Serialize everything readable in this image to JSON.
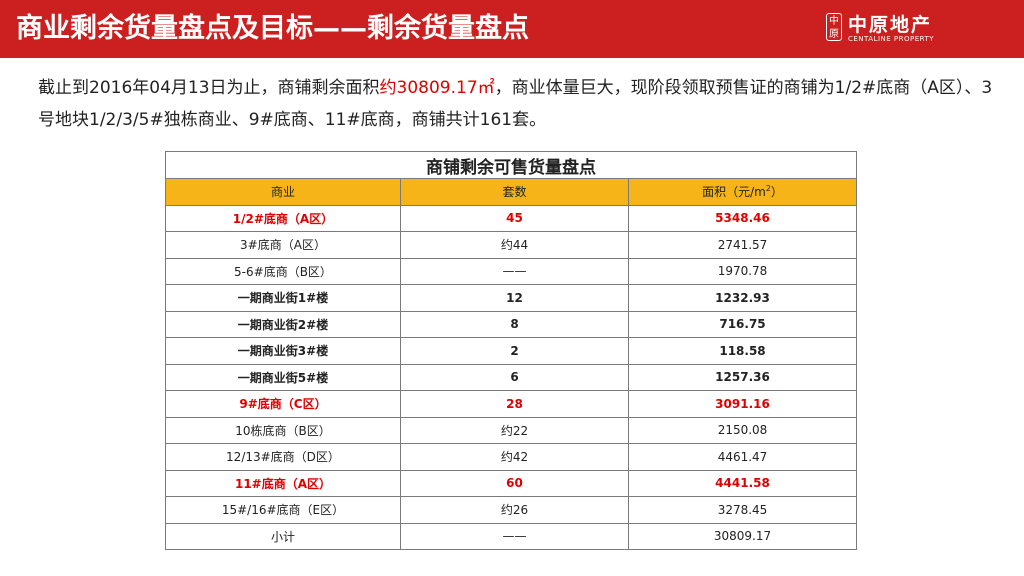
{
  "header": {
    "title": "商业剩余货量盘点及目标——剩余货量盘点",
    "logo_seal": "中原",
    "logo_cn": "中原地产",
    "logo_en": "CENTALINE PROPERTY"
  },
  "intro": {
    "part1": "截止到2016年04月13日为止，商铺剩余面积",
    "highlight": "约30809.17㎡",
    "part2": "，商业体量巨大，现阶段领取预售证的商铺为1/2#底商（A区）、3号地块1/2/3/5#独栋商业、9#底商、11#底商，商铺共计161套。"
  },
  "table": {
    "caption": "商铺剩余可售货量盘点",
    "headers": {
      "col1": "商业",
      "col2": "套数",
      "col3": "面积（元/m",
      "col3_sup": "2",
      "col3_tail": "）"
    },
    "rows": [
      {
        "name": "1/2#底商（A区）",
        "count": "45",
        "area": "5348.46",
        "style": "red"
      },
      {
        "name": "3#底商（A区）",
        "count": "约44",
        "area": "2741.57",
        "style": "normal"
      },
      {
        "name": "5-6#底商（B区）",
        "count": "——",
        "area": "1970.78",
        "style": "normal"
      },
      {
        "name": "一期商业街1#楼",
        "count": "12",
        "area": "1232.93",
        "style": "bold"
      },
      {
        "name": "一期商业街2#楼",
        "count": "8",
        "area": "716.75",
        "style": "bold"
      },
      {
        "name": "一期商业街3#楼",
        "count": "2",
        "area": "118.58",
        "style": "bold"
      },
      {
        "name": "一期商业街5#楼",
        "count": "6",
        "area": "1257.36",
        "style": "bold"
      },
      {
        "name": "9#底商（C区）",
        "count": "28",
        "area": "3091.16",
        "style": "red"
      },
      {
        "name": "10栋底商（B区）",
        "count": "约22",
        "area": "2150.08",
        "style": "normal"
      },
      {
        "name": "12/13#底商（D区）",
        "count": "约42",
        "area": "4461.47",
        "style": "normal"
      },
      {
        "name": "11#底商（A区）",
        "count": "60",
        "area": "4441.58",
        "style": "red"
      },
      {
        "name": "15#/16#底商（E区）",
        "count": "约26",
        "area": "3278.45",
        "style": "normal"
      },
      {
        "name": "小计",
        "count": "——",
        "area": "30809.17",
        "style": "normal"
      }
    ]
  },
  "colors": {
    "header_bg": "#cc1f1f",
    "table_header_bg": "#f6b418",
    "highlight": "#e00000"
  }
}
